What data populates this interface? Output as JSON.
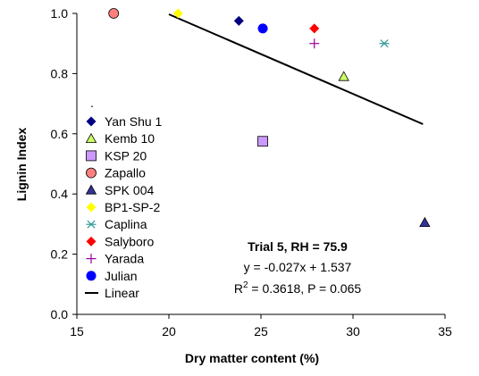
{
  "chart_data": {
    "type": "scatter",
    "title": "",
    "xlabel": "Dry matter content (%)",
    "ylabel": "Lignin Index",
    "xlim": [
      15,
      35
    ],
    "ylim": [
      0,
      1.0
    ],
    "x_ticks": [
      "15",
      "20",
      "25",
      "30",
      "35"
    ],
    "y_ticks": [
      "0.0",
      "0.2",
      "0.4",
      "0.6",
      "0.8",
      "1.0"
    ],
    "grid": false,
    "legend_position": "left",
    "series": [
      {
        "name": "Yan Shu 1",
        "marker": "diamond",
        "color": "#000080",
        "x": [
          23.8
        ],
        "y": [
          0.975
        ]
      },
      {
        "name": "Kemb 10",
        "marker": "triangle",
        "color": "#ccff66",
        "x": [
          29.5
        ],
        "y": [
          0.79
        ]
      },
      {
        "name": "KSP 20",
        "marker": "square",
        "color": "#cc99ff",
        "x": [
          25.1
        ],
        "y": [
          0.575
        ]
      },
      {
        "name": "Zapallo",
        "marker": "circle",
        "color": "#ff7f7f",
        "x": [
          17.0
        ],
        "y": [
          1.0
        ]
      },
      {
        "name": "SPK 004",
        "marker": "triangle",
        "color": "#333399",
        "x": [
          33.9
        ],
        "y": [
          0.305
        ]
      },
      {
        "name": "BP1-SP-2",
        "marker": "diamond",
        "color": "#ffff00",
        "x": [
          20.5
        ],
        "y": [
          1.0
        ]
      },
      {
        "name": "Caplina",
        "marker": "asterisk",
        "color": "#339999",
        "x": [
          31.7
        ],
        "y": [
          0.9
        ]
      },
      {
        "name": "Salyboro",
        "marker": "diamond",
        "color": "#ff0000",
        "x": [
          27.9
        ],
        "y": [
          0.95
        ]
      },
      {
        "name": "Yarada",
        "marker": "plus",
        "color": "#990099",
        "x": [
          27.9
        ],
        "y": [
          0.9
        ]
      },
      {
        "name": "Julian",
        "marker": "circle",
        "color": "#0000ff",
        "x": [
          25.1
        ],
        "y": [
          0.95
        ]
      }
    ],
    "trendline": {
      "name": "Linear",
      "color": "#000000",
      "x": [
        20,
        33.8
      ],
      "y": [
        0.997,
        0.632
      ]
    },
    "annotations": {
      "trial": "Trial 5, RH = 75.9",
      "equation": "y = -0.027x + 1.537",
      "r2_prefix": "R",
      "r2_sup": "2",
      "r2_rest": " = 0.3618, P = 0.065"
    },
    "legend_dot": "."
  }
}
